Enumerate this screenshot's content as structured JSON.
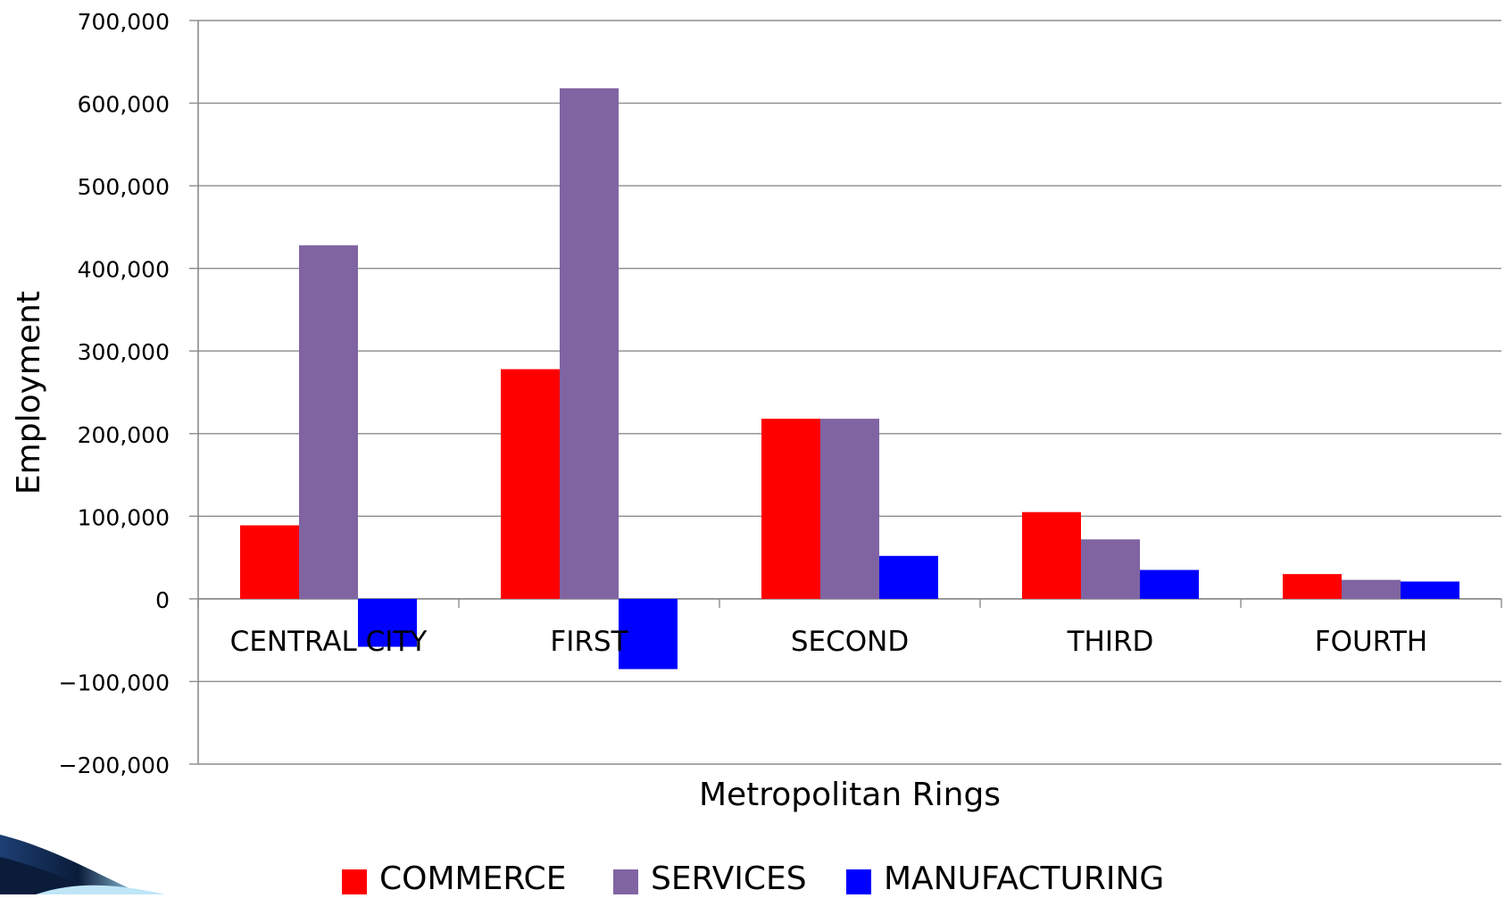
{
  "chart_data": {
    "type": "bar",
    "title": "",
    "xlabel": "Metropolitan Rings",
    "ylabel": "Employment",
    "categories": [
      "CENTRAL CITY",
      "FIRST",
      "SECOND",
      "THIRD",
      "FOURTH"
    ],
    "ylim": [
      -200000,
      700000
    ],
    "yticks": [
      700000,
      600000,
      500000,
      400000,
      300000,
      200000,
      100000,
      0,
      -100000,
      -200000
    ],
    "ytick_labels": [
      "700,000",
      "600,000",
      "500,000",
      "400,000",
      "300,000",
      "200,000",
      "100,000",
      "0",
      "−100,000",
      "−200,000"
    ],
    "grid": true,
    "legend_position": "bottom",
    "series": [
      {
        "name": "COMMERCE",
        "color": "#ff0000",
        "values": [
          89000,
          278000,
          218000,
          105000,
          30000
        ]
      },
      {
        "name": "SERVICES",
        "color": "#8064a2",
        "values": [
          428000,
          618000,
          218000,
          72000,
          23000
        ]
      },
      {
        "name": "MANUFACTURING",
        "color": "#0000ff",
        "values": [
          -58000,
          -85000,
          52000,
          35000,
          21000
        ]
      }
    ]
  }
}
